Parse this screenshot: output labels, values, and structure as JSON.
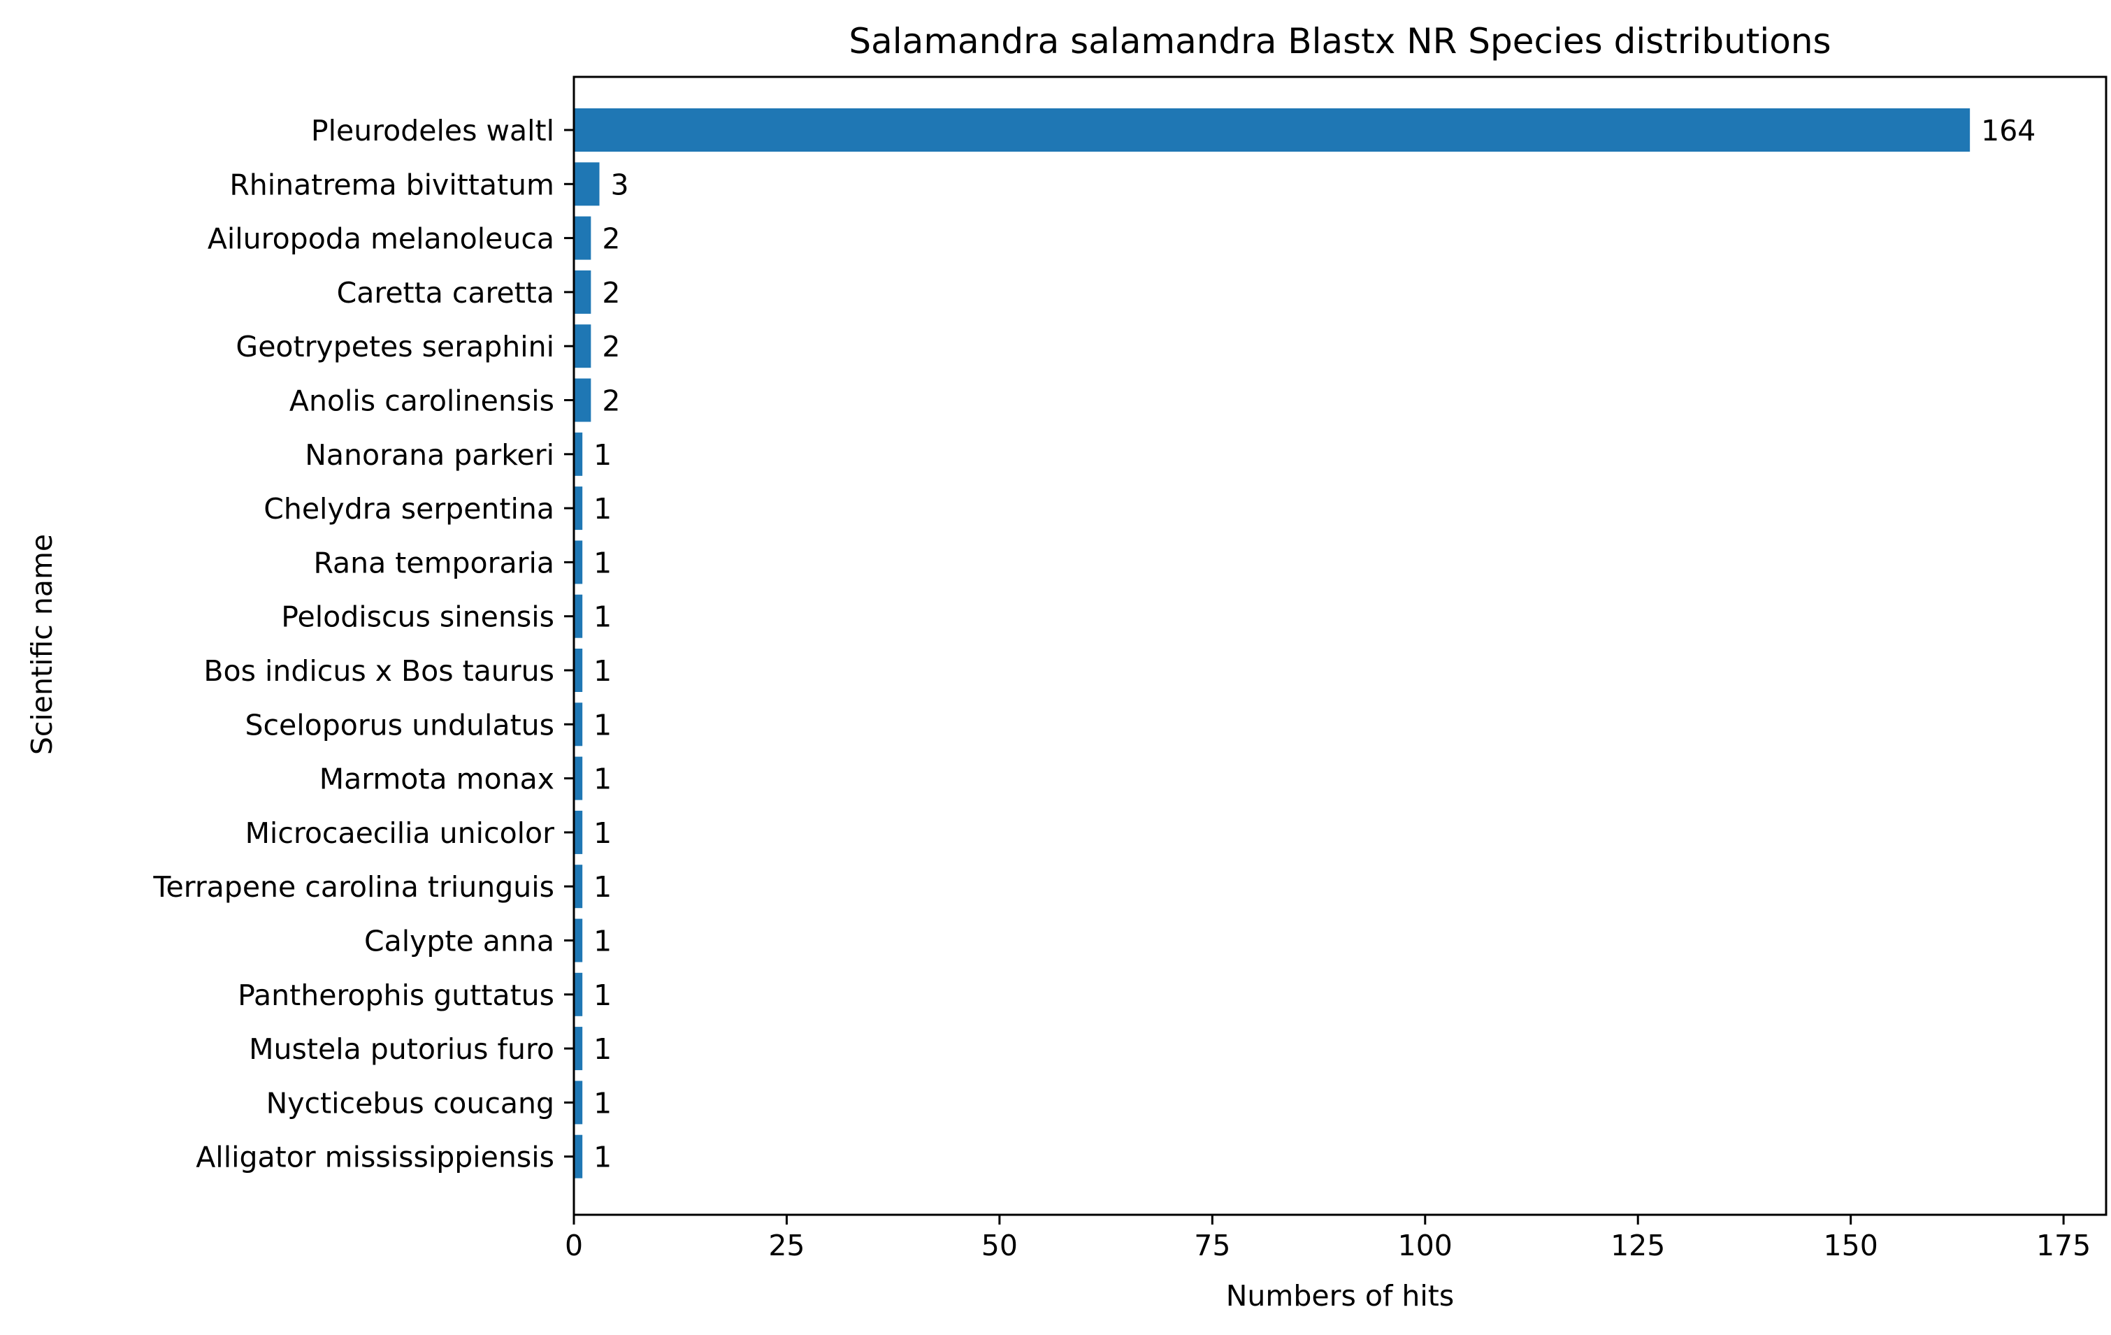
{
  "chart_data": {
    "type": "bar",
    "orientation": "horizontal",
    "title": "Salamandra salamandra Blastx NR Species distributions",
    "xlabel": "Numbers of hits",
    "ylabel": "Scientific name",
    "categories": [
      "Pleurodeles waltl",
      "Rhinatrema bivittatum",
      "Ailuropoda melanoleuca",
      "Caretta caretta",
      "Geotrypetes seraphini",
      "Anolis carolinensis",
      "Nanorana parkeri",
      "Chelydra serpentina",
      "Rana temporaria",
      "Pelodiscus sinensis",
      "Bos indicus x Bos taurus",
      "Sceloporus undulatus",
      "Marmota monax",
      "Microcaecilia unicolor",
      "Terrapene carolina triunguis",
      "Calypte anna",
      "Pantherophis guttatus",
      "Mustela putorius furo",
      "Nycticebus coucang",
      "Alligator mississippiensis"
    ],
    "values": [
      164,
      3,
      2,
      2,
      2,
      2,
      1,
      1,
      1,
      1,
      1,
      1,
      1,
      1,
      1,
      1,
      1,
      1,
      1,
      1
    ],
    "data_labels": [
      "164",
      "3",
      "2",
      "2",
      "2",
      "2",
      "1",
      "1",
      "1",
      "1",
      "1",
      "1",
      "1",
      "1",
      "1",
      "1",
      "1",
      "1",
      "1",
      "1"
    ],
    "xlim": [
      0,
      180
    ],
    "xticks": [
      0,
      25,
      50,
      75,
      100,
      125,
      150,
      175
    ],
    "xtick_labels": [
      "0",
      "25",
      "50",
      "75",
      "100",
      "125",
      "150",
      "175"
    ],
    "grid": false,
    "legend": "none",
    "bar_color": "#1f77b4"
  }
}
